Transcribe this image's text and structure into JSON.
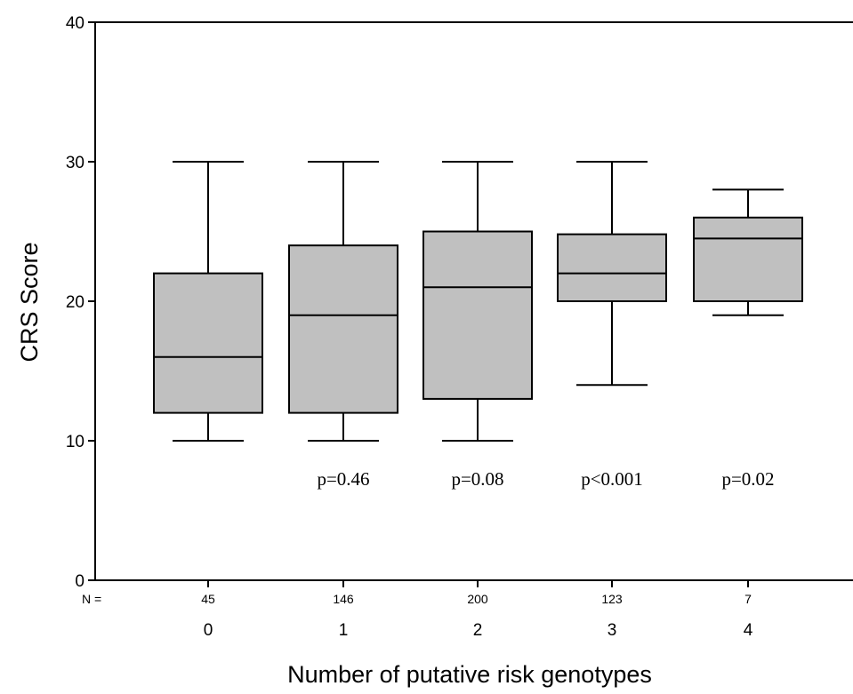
{
  "chart_data": {
    "type": "boxplot",
    "xlabel": "Number of putative risk genotypes",
    "ylabel": "CRS Score",
    "ylim": [
      0,
      40
    ],
    "yticks": [
      0,
      10,
      20,
      30,
      40
    ],
    "n_prefix": "N =",
    "box_fill": "#c0c0c0",
    "grid": false,
    "categories": [
      "0",
      "1",
      "2",
      "3",
      "4"
    ],
    "n": [
      "45",
      "146",
      "200",
      "123",
      "7"
    ],
    "boxes": [
      {
        "category": "0",
        "min": 10,
        "q1": 12,
        "median": 16,
        "q3": 22,
        "max": 30,
        "p_value": ""
      },
      {
        "category": "1",
        "min": 10,
        "q1": 12,
        "median": 19,
        "q3": 24,
        "max": 30,
        "p_value": "p=0.46"
      },
      {
        "category": "2",
        "min": 10,
        "q1": 13,
        "median": 21,
        "q3": 25,
        "max": 30,
        "p_value": "p=0.08"
      },
      {
        "category": "3",
        "min": 14,
        "q1": 20,
        "median": 22,
        "q3": 24.8,
        "max": 30,
        "p_value": "p<0.001"
      },
      {
        "category": "4",
        "min": 19,
        "q1": 20,
        "median": 24.5,
        "q3": 26,
        "max": 28,
        "p_value": "p=0.02"
      }
    ]
  }
}
